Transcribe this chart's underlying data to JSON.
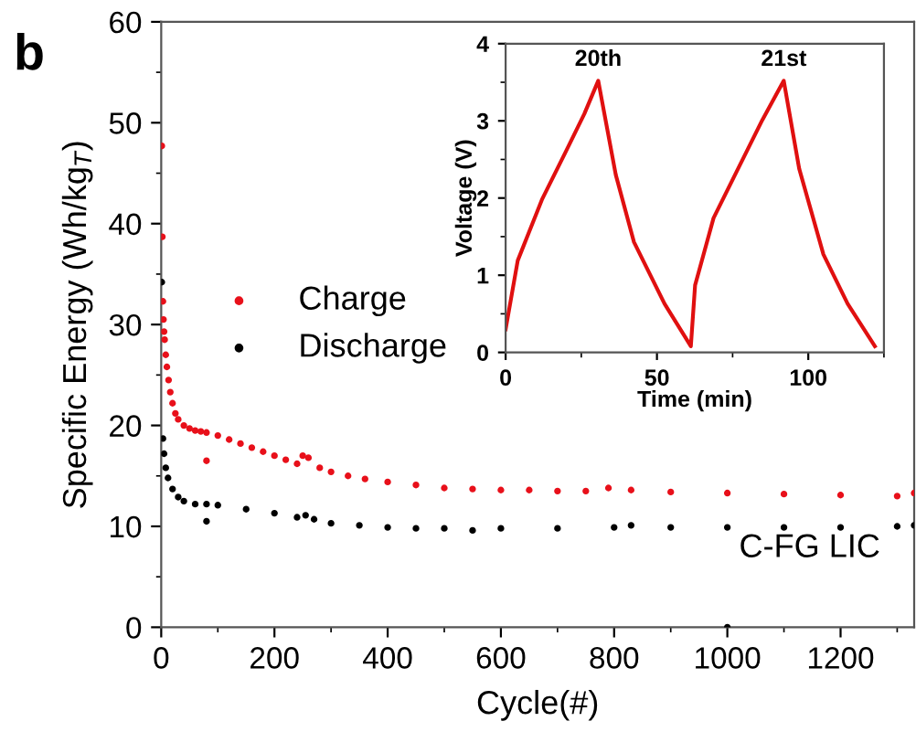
{
  "chart_data": [
    {
      "type": "scatter",
      "xlabel": "Cycle(#)",
      "ylabel": "Specific Energy (Wh/kg$_{T}$)",
      "xlim": [
        0,
        1330
      ],
      "ylim": [
        0,
        60
      ],
      "xticks": [
        0,
        200,
        400,
        600,
        800,
        1000,
        1200
      ],
      "yticks": [
        0,
        10,
        20,
        30,
        40,
        50,
        60
      ],
      "marker": "circle",
      "legend": "left",
      "grid": false,
      "annotations": [
        "b",
        "C-FG LIC"
      ],
      "series": [
        {
          "name": "Charge",
          "color": "#e8101a",
          "x": [
            1,
            2,
            3,
            4,
            5,
            6,
            8,
            10,
            13,
            16,
            20,
            25,
            30,
            40,
            50,
            60,
            70,
            80,
            80,
            100,
            120,
            140,
            160,
            180,
            200,
            220,
            240,
            250,
            260,
            280,
            300,
            330,
            360,
            400,
            450,
            500,
            550,
            600,
            650,
            700,
            750,
            790,
            830,
            900,
            1000,
            1100,
            1200,
            1300,
            1330
          ],
          "values": [
            47.7,
            38.7,
            32.3,
            30.5,
            29.3,
            28.5,
            27,
            25.8,
            24.5,
            23.3,
            22.2,
            21.2,
            20.6,
            20,
            19.7,
            19.5,
            19.4,
            16.5,
            19.3,
            19,
            18.6,
            18.2,
            17.8,
            17.4,
            17,
            16.6,
            16.2,
            17,
            16.8,
            15.8,
            15.4,
            15,
            14.7,
            14.4,
            14.1,
            13.8,
            13.7,
            13.6,
            13.6,
            13.5,
            13.5,
            13.8,
            13.6,
            13.4,
            13.3,
            13.2,
            13.1,
            13,
            13.3
          ]
        },
        {
          "name": "Discharge",
          "color": "#000000",
          "x": [
            1,
            3,
            5,
            8,
            12,
            20,
            30,
            40,
            60,
            80,
            80,
            100,
            150,
            200,
            240,
            255,
            270,
            300,
            350,
            400,
            450,
            500,
            550,
            600,
            700,
            800,
            830,
            900,
            1000,
            1000,
            1100,
            1200,
            1300,
            1330
          ],
          "values": [
            34.2,
            18.7,
            17.2,
            15.8,
            14.8,
            13.7,
            12.9,
            12.5,
            12.2,
            10.5,
            12.2,
            12.1,
            11.7,
            11.3,
            10.9,
            11.1,
            10.7,
            10.3,
            10.1,
            9.9,
            9.8,
            9.8,
            9.6,
            9.8,
            9.8,
            9.9,
            10.1,
            9.9,
            9.9,
            0,
            9.9,
            9.9,
            10,
            10.1
          ]
        }
      ]
    },
    {
      "type": "line",
      "xlabel": "Time (min)",
      "ylabel": "Voltage (V)",
      "xlim": [
        0,
        125
      ],
      "ylim": [
        0,
        4
      ],
      "xticks": [
        0,
        50,
        100
      ],
      "yticks": [
        0,
        1,
        2,
        3,
        4
      ],
      "grid": false,
      "annotations": [
        {
          "text": "20th",
          "x": 30.6,
          "y": 3.52
        },
        {
          "text": "21st",
          "x": 91.9,
          "y": 3.52
        }
      ],
      "series": [
        {
          "color": "#e01010",
          "x": [
            0,
            4,
            12,
            20,
            26,
            30.6,
            36.4,
            42.4,
            52.5,
            61.2,
            62.6,
            68.7,
            76.8,
            84.8,
            91.9,
            97,
            105,
            113,
            122
          ],
          "values": [
            0.3,
            1.19,
            1.98,
            2.61,
            3.09,
            3.52,
            2.3,
            1.43,
            0.63,
            0.08,
            0.87,
            1.74,
            2.38,
            3.01,
            3.52,
            2.38,
            1.27,
            0.63,
            0.08
          ]
        }
      ]
    }
  ]
}
